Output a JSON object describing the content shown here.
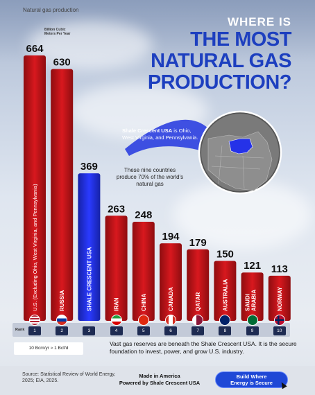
{
  "header": {
    "series_label": "Natural gas production",
    "unit_label": "Billion Cubic Meters Per Year",
    "title_small": "WHERE IS",
    "title_big_lines": [
      "THE MOST",
      "NATURAL GAS",
      "PRODUCTION?"
    ]
  },
  "callout": {
    "name": "Shale Crescent USA",
    "text": "is Ohio, West Virginia, and Pennsylvania."
  },
  "share_note": "These nine countries produce 70% of the world's natural gas",
  "rank_word": "Rank",
  "conversion_note": "10 Bcm/yr ≈ 1 Bcf/d",
  "vast_note": "Vast gas reserves are beneath the Shale Crescent USA. It is the secure foundation to invest, power, and grow U.S. industry.",
  "footer": {
    "source": "Source: Statistical Review of World Energy, 2025; EIA, 2025.",
    "made_in_line1": "Made in America",
    "made_in_line2": "Powered by Shale Crescent USA",
    "cta_line1": "Build Where",
    "cta_line2": "Energy is Secure"
  },
  "colors": {
    "bar_red": "#c8151b",
    "bar_blue": "#1f2fd6",
    "title_blue": "#1d3fbf"
  },
  "chart_data": {
    "type": "bar",
    "title": "WHERE IS THE MOST NATURAL GAS PRODUCTION?",
    "ylabel": "Billion Cubic Meters Per Year",
    "ylim": [
      0,
      664
    ],
    "categories": [
      "U.S. (Excluding Ohio, West Virginia, and Pennsylvania)",
      "RUSSIA",
      "SHALE CRESCENT USA",
      "IRAN",
      "CHINA",
      "CANADA",
      "QATAR",
      "AUSTRALIA",
      "SAUDI ARABIA",
      "NORWAY"
    ],
    "values": [
      664,
      630,
      369,
      263,
      248,
      194,
      179,
      150,
      121,
      113
    ],
    "ranks": [
      "1",
      "2",
      "3",
      "4",
      "5",
      "6",
      "7",
      "8",
      "9",
      "10"
    ],
    "highlight_index": 2,
    "flags": [
      "us-flag-icon",
      "russia-flag-icon",
      "none",
      "iran-flag-icon",
      "china-flag-icon",
      "canada-flag-icon",
      "qatar-flag-icon",
      "australia-flag-icon",
      "saudi-arabia-flag-icon",
      "norway-flag-icon"
    ],
    "legend": "none",
    "grid": false
  }
}
